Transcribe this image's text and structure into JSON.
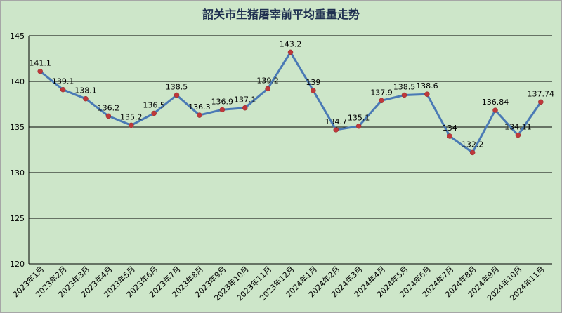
{
  "chart_data": {
    "type": "line",
    "title": "韶关市生猪屠宰前平均重量走势",
    "xlabel": "",
    "ylabel": "",
    "ylim": [
      120,
      145
    ],
    "yticks": [
      120,
      125,
      130,
      135,
      140,
      145
    ],
    "grid": true,
    "legend": "none",
    "colors": {
      "line": "#4a7ab5",
      "marker": "#c0383a",
      "background": "#cde6c9"
    },
    "categories": [
      "2023年1月",
      "2023年2月",
      "2023年3月",
      "2023年4月",
      "2023年5月",
      "2023年6月",
      "2023年7月",
      "2023年8月",
      "2023年9月",
      "2023年10月",
      "2023年11月",
      "2023年12月",
      "2024年1月",
      "2024年2月",
      "2024年3月",
      "2024年4月",
      "2024年5月",
      "2024年6月",
      "2024年7月",
      "2024年8月",
      "2024年9月",
      "2024年10月",
      "2024年11月"
    ],
    "values": [
      141.1,
      139.1,
      138.1,
      136.2,
      135.2,
      136.5,
      138.5,
      136.3,
      136.9,
      137.1,
      139.2,
      143.2,
      139,
      134.7,
      135.1,
      137.9,
      138.5,
      138.6,
      134,
      132.2,
      136.84,
      134.11,
      137.74
    ],
    "data_labels": [
      "141.1",
      "139.1",
      "138.1",
      "136.2",
      "135.2",
      "136.5",
      "138.5",
      "136.3",
      "136.9",
      "137.1",
      "139.2",
      "143.2",
      "139",
      "134.7",
      "135.1",
      "137.9",
      "138.5",
      "138.6",
      "134",
      "132.2",
      "136.84",
      "134.11",
      "137.74"
    ]
  }
}
